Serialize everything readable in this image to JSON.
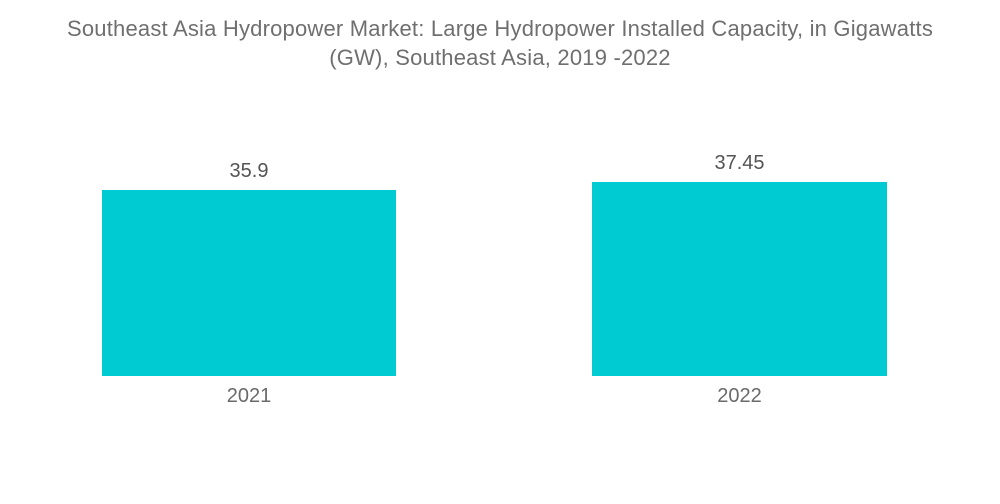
{
  "header": {
    "title_lines": [
      "Southeast Asia Hydropower Market: Large Hydropower Installed Capacity, in Gigawatts",
      "(GW), Southeast Asia, 2019 -2022"
    ]
  },
  "colors": {
    "bar": "#00cbd2",
    "title_text": "#6f6f6f",
    "value_text": "#545454",
    "category_text": "#6a6a6a",
    "background": "#ffffff"
  },
  "chart_data": {
    "type": "bar",
    "title": "Southeast Asia Hydropower Market: Large Hydropower Installed Capacity, in Gigawatts (GW), Southeast Asia, 2019 -2022",
    "categories": [
      "2021",
      "2022"
    ],
    "values": [
      35.9,
      37.45
    ],
    "xlabel": "",
    "ylabel": "",
    "baseline": 0,
    "grid": false,
    "axes_visible": false,
    "legend": "none",
    "value_labels_position": "above"
  }
}
